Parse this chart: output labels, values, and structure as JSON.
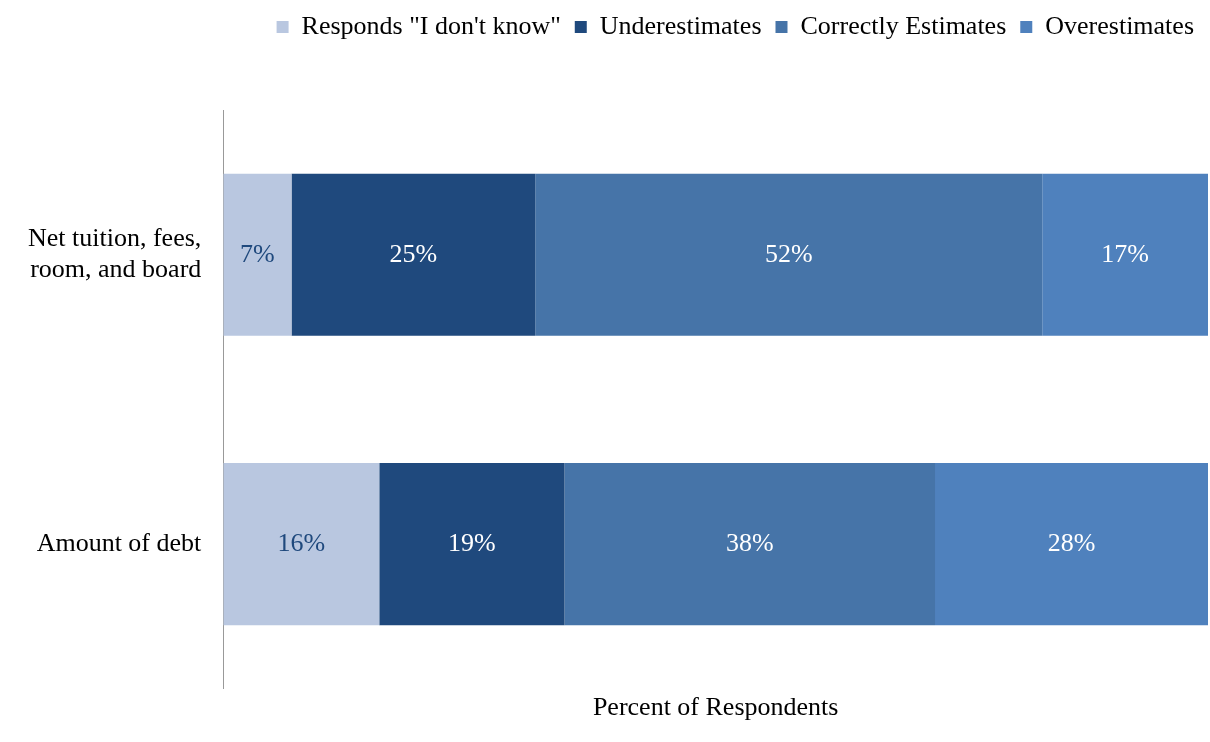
{
  "chart_data": {
    "type": "bar",
    "orientation": "horizontal",
    "stacked": true,
    "xlabel": "Percent of Respondents",
    "legend": "top right",
    "grid": false,
    "categories": [
      "Net tuition, fees, room, and board",
      "Amount of debt"
    ],
    "series": [
      {
        "name": "Responds \"I don't know\"",
        "color": "#b9c7e0",
        "values": [
          7,
          16
        ],
        "value_labels": [
          "7%",
          "16%"
        ]
      },
      {
        "name": "Underestimates",
        "color": "#1f497d",
        "values": [
          25,
          19
        ],
        "value_labels": [
          "25%",
          "19%"
        ]
      },
      {
        "name": "Correctly Estimates",
        "color": "#4674a8",
        "values": [
          52,
          38
        ],
        "value_labels": [
          "52%",
          "38%"
        ]
      },
      {
        "name": "Overestimates",
        "color": "#4f81bd",
        "values": [
          17,
          28
        ],
        "value_labels": [
          "17%",
          "28%"
        ]
      }
    ]
  }
}
